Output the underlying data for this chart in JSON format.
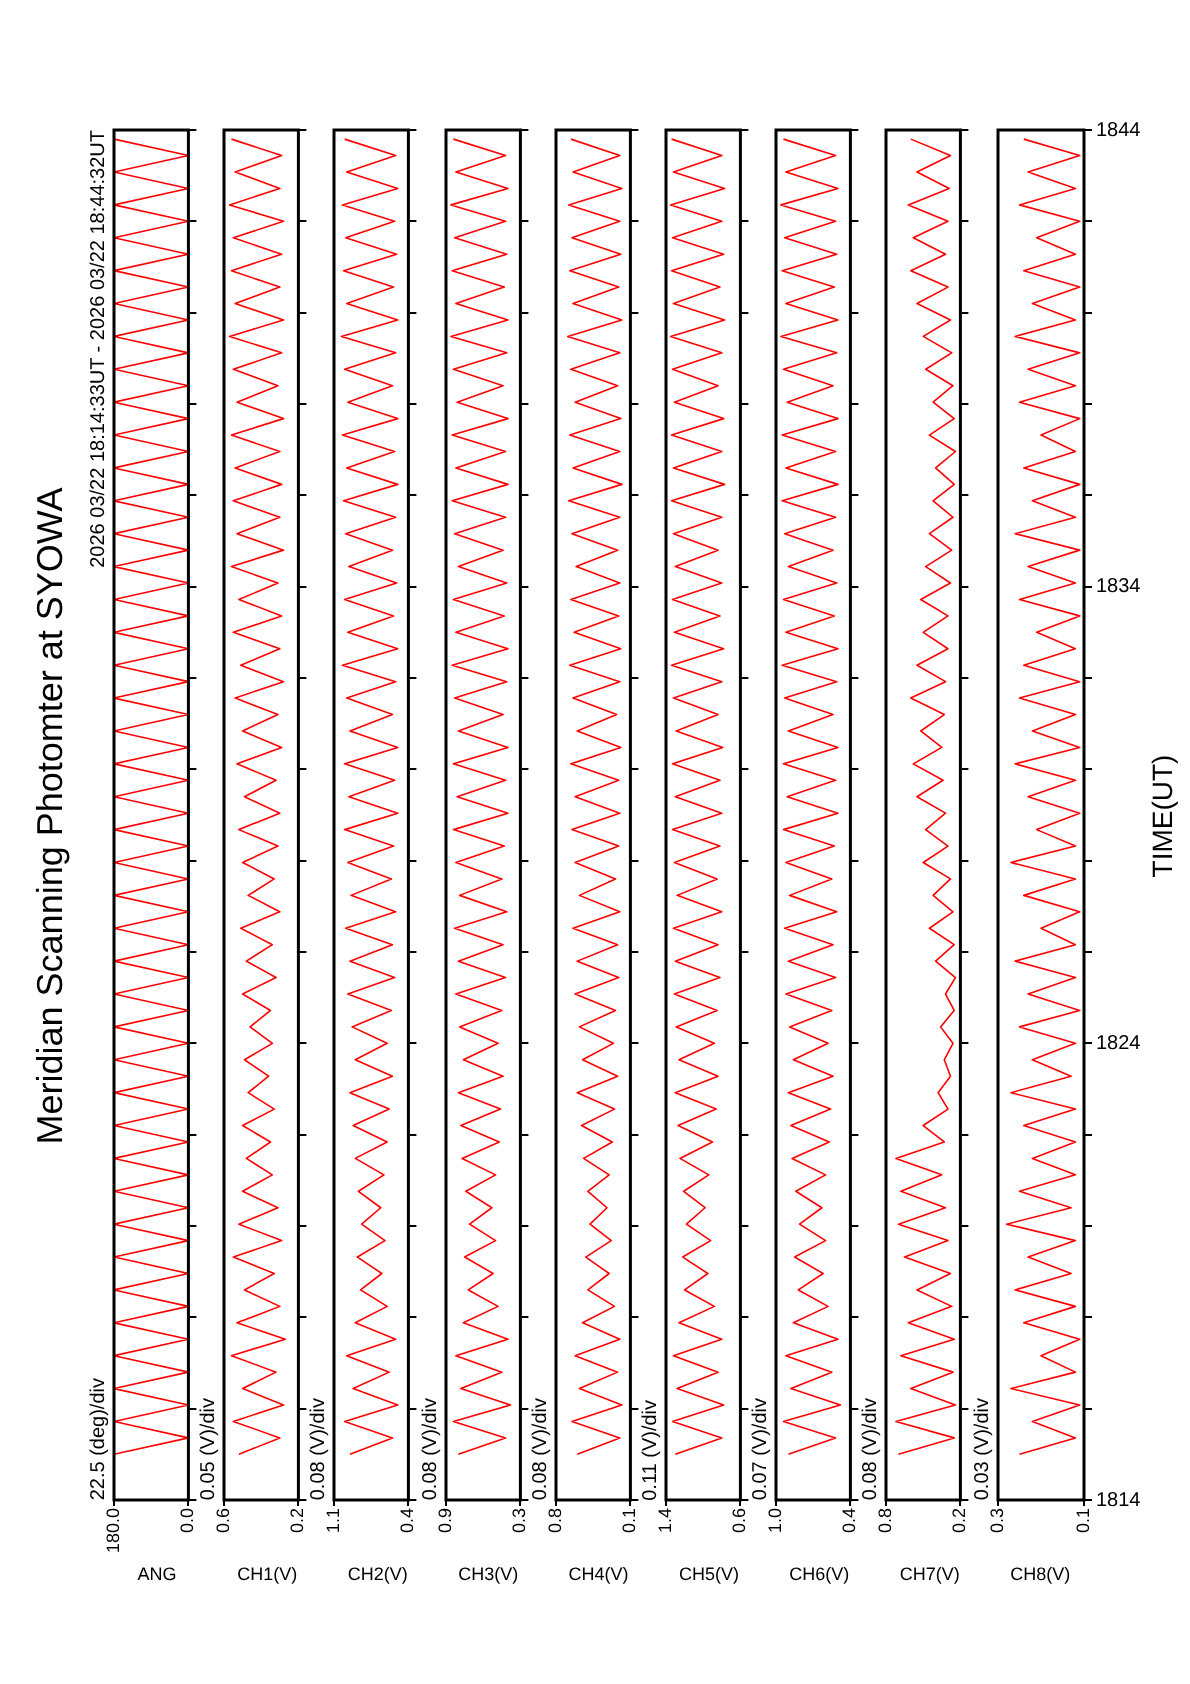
{
  "chart_data": [
    {
      "type": "line",
      "title": "Meridian Scanning Photomter at SYOWA",
      "subtitle": "2026 03/22 18:14:33UT - 2026 03/22 18:44:32UT",
      "xlabel": "ANG",
      "annotations": [
        "22.5 (deg)/div"
      ],
      "color": "#ff0000",
      "tick_labels": "x",
      "ylim": [
        1814,
        1844
      ],
      "yticks": [
        1814,
        {
          "value": 1816,
          "label": null
        },
        {
          "value": 1818,
          "label": null
        },
        {
          "value": 1820,
          "label": null
        },
        {
          "value": 1822,
          "label": null
        },
        1824,
        {
          "value": 1826,
          "label": null
        },
        {
          "value": 1828,
          "label": null
        },
        {
          "value": 1830,
          "label": null
        },
        {
          "value": 1832,
          "label": null
        },
        1834,
        {
          "value": 1836,
          "label": null
        },
        {
          "value": 1838,
          "label": null
        },
        {
          "value": 1840,
          "label": null
        },
        {
          "value": 1842,
          "label": null
        },
        1844
      ],
      "xlim": [
        180,
        0
      ],
      "xticks": [
        {
          "value": 180,
          "label": "180.0"
        },
        {
          "value": 0,
          "label": "0.0"
        }
      ],
      "values": [
        1815,
        1815.36,
        1815.72,
        1816.08,
        1816.44,
        1816.8,
        1817.16,
        1817.52,
        1817.88,
        1818.24,
        1818.6,
        1818.96,
        1819.32,
        1819.68,
        1820.04,
        1820.4,
        1820.76,
        1821.12,
        1821.48,
        1821.84,
        1822.2,
        1822.56,
        1822.92,
        1823.28,
        1823.64,
        1824,
        1824.36,
        1824.72,
        1825.08,
        1825.44,
        1825.8,
        1826.16,
        1826.52,
        1826.88,
        1827.24,
        1827.6,
        1827.96,
        1828.32,
        1828.68,
        1829.04,
        1829.4,
        1829.76,
        1830.12,
        1830.48,
        1830.84,
        1831.2,
        1831.56,
        1831.92,
        1832.28,
        1832.64,
        1833,
        1833.36,
        1833.72,
        1834.08,
        1834.44,
        1834.8,
        1835.16,
        1835.52,
        1835.88,
        1836.24,
        1836.6,
        1836.96,
        1837.32,
        1837.68,
        1838.04,
        1838.4,
        1838.76,
        1839.12,
        1839.48,
        1839.84,
        1840.2,
        1840.56,
        1840.92,
        1841.28,
        1841.64,
        1842,
        1842.36,
        1842.72,
        1843.08,
        1843.44,
        1843.8
      ],
      "x": [
        180,
        0,
        180,
        0,
        180,
        0,
        180,
        0,
        180,
        0,
        180,
        0,
        180,
        0,
        180,
        0,
        180,
        0,
        180,
        0,
        180,
        0,
        180,
        0,
        180,
        0,
        180,
        0,
        180,
        0,
        180,
        0,
        180,
        0,
        180,
        0,
        180,
        0,
        180,
        0,
        180,
        0,
        180,
        0,
        180,
        0,
        180,
        0,
        180,
        0,
        180,
        0,
        180,
        0,
        180,
        0,
        180,
        0,
        180,
        0,
        180,
        0,
        180,
        0,
        180,
        0,
        180,
        0,
        180,
        0,
        180,
        0,
        180,
        0,
        180,
        0,
        180,
        0,
        180,
        0,
        180
      ]
    },
    {
      "type": "line",
      "xlabel": "CH1(V)",
      "annotations": [
        "0.05 (V)/div"
      ],
      "color": "#ff0000",
      "tick_labels": "x",
      "ylim": [
        1814,
        1844
      ],
      "yticks": [
        1814,
        {
          "value": 1816,
          "label": null
        },
        {
          "value": 1818,
          "label": null
        },
        {
          "value": 1820,
          "label": null
        },
        {
          "value": 1822,
          "label": null
        },
        1824,
        {
          "value": 1826,
          "label": null
        },
        {
          "value": 1828,
          "label": null
        },
        {
          "value": 1830,
          "label": null
        },
        {
          "value": 1832,
          "label": null
        },
        1834,
        {
          "value": 1836,
          "label": null
        },
        {
          "value": 1838,
          "label": null
        },
        {
          "value": 1840,
          "label": null
        },
        {
          "value": 1842,
          "label": null
        },
        1844
      ],
      "xlim": [
        0.6,
        0.2
      ],
      "xticks": [
        0.6,
        0.2
      ],
      "values": [
        1815,
        1815.36,
        1815.72,
        1816.08,
        1816.44,
        1816.8,
        1817.16,
        1817.52,
        1817.88,
        1818.24,
        1818.6,
        1818.96,
        1819.32,
        1819.68,
        1820.04,
        1820.4,
        1820.76,
        1821.12,
        1821.48,
        1821.84,
        1822.2,
        1822.56,
        1822.92,
        1823.28,
        1823.64,
        1824,
        1824.36,
        1824.72,
        1825.08,
        1825.44,
        1825.8,
        1826.16,
        1826.52,
        1826.88,
        1827.24,
        1827.6,
        1827.96,
        1828.32,
        1828.68,
        1829.04,
        1829.4,
        1829.76,
        1830.12,
        1830.48,
        1830.84,
        1831.2,
        1831.56,
        1831.92,
        1832.28,
        1832.64,
        1833,
        1833.36,
        1833.72,
        1834.08,
        1834.44,
        1834.8,
        1835.16,
        1835.52,
        1835.88,
        1836.24,
        1836.6,
        1836.96,
        1837.32,
        1837.68,
        1838.04,
        1838.4,
        1838.76,
        1839.12,
        1839.48,
        1839.84,
        1840.2,
        1840.56,
        1840.92,
        1841.28,
        1841.64,
        1842,
        1842.36,
        1842.72,
        1843.08,
        1843.44,
        1843.8
      ],
      "x": [
        0.52,
        0.3,
        0.55,
        0.28,
        0.5,
        0.32,
        0.56,
        0.27,
        0.53,
        0.3,
        0.49,
        0.33,
        0.55,
        0.29,
        0.52,
        0.31,
        0.5,
        0.34,
        0.48,
        0.35,
        0.5,
        0.33,
        0.47,
        0.36,
        0.49,
        0.34,
        0.46,
        0.35,
        0.5,
        0.32,
        0.48,
        0.34,
        0.51,
        0.3,
        0.47,
        0.33,
        0.5,
        0.31,
        0.52,
        0.3,
        0.49,
        0.32,
        0.53,
        0.29,
        0.5,
        0.31,
        0.54,
        0.28,
        0.51,
        0.3,
        0.55,
        0.29,
        0.52,
        0.31,
        0.56,
        0.28,
        0.53,
        0.3,
        0.55,
        0.29,
        0.54,
        0.3,
        0.56,
        0.28,
        0.53,
        0.31,
        0.55,
        0.29,
        0.57,
        0.28,
        0.54,
        0.3,
        0.56,
        0.29,
        0.55,
        0.28,
        0.57,
        0.3,
        0.54,
        0.29,
        0.56
      ]
    },
    {
      "type": "line",
      "xlabel": "CH2(V)",
      "annotations": [
        "0.08 (V)/div"
      ],
      "color": "#ff0000",
      "tick_labels": "x",
      "ylim": [
        1814,
        1844
      ],
      "yticks": [
        1814,
        {
          "value": 1816,
          "label": null
        },
        {
          "value": 1818,
          "label": null
        },
        {
          "value": 1820,
          "label": null
        },
        {
          "value": 1822,
          "label": null
        },
        1824,
        {
          "value": 1826,
          "label": null
        },
        {
          "value": 1828,
          "label": null
        },
        {
          "value": 1830,
          "label": null
        },
        {
          "value": 1832,
          "label": null
        },
        1834,
        {
          "value": 1836,
          "label": null
        },
        {
          "value": 1838,
          "label": null
        },
        {
          "value": 1840,
          "label": null
        },
        {
          "value": 1842,
          "label": null
        },
        1844
      ],
      "xlim": [
        1.1,
        0.4
      ],
      "xticks": [
        1.1,
        0.4
      ],
      "values": [
        1815,
        1815.36,
        1815.72,
        1816.08,
        1816.44,
        1816.8,
        1817.16,
        1817.52,
        1817.88,
        1818.24,
        1818.6,
        1818.96,
        1819.32,
        1819.68,
        1820.04,
        1820.4,
        1820.76,
        1821.12,
        1821.48,
        1821.84,
        1822.2,
        1822.56,
        1822.92,
        1823.28,
        1823.64,
        1824,
        1824.36,
        1824.72,
        1825.08,
        1825.44,
        1825.8,
        1826.16,
        1826.52,
        1826.88,
        1827.24,
        1827.6,
        1827.96,
        1828.32,
        1828.68,
        1829.04,
        1829.4,
        1829.76,
        1830.12,
        1830.48,
        1830.84,
        1831.2,
        1831.56,
        1831.92,
        1832.28,
        1832.64,
        1833,
        1833.36,
        1833.72,
        1834.08,
        1834.44,
        1834.8,
        1835.16,
        1835.52,
        1835.88,
        1836.24,
        1836.6,
        1836.96,
        1837.32,
        1837.68,
        1838.04,
        1838.4,
        1838.76,
        1839.12,
        1839.48,
        1839.84,
        1840.2,
        1840.56,
        1840.92,
        1841.28,
        1841.64,
        1842,
        1842.36,
        1842.72,
        1843.08,
        1843.44,
        1843.8
      ],
      "x": [
        0.95,
        0.55,
        1.0,
        0.5,
        0.92,
        0.58,
        0.98,
        0.52,
        0.9,
        0.6,
        0.85,
        0.65,
        0.88,
        0.62,
        0.84,
        0.66,
        0.87,
        0.63,
        0.9,
        0.6,
        0.92,
        0.58,
        0.95,
        0.55,
        0.9,
        0.6,
        0.93,
        0.56,
        0.97,
        0.53,
        0.95,
        0.55,
        0.99,
        0.52,
        0.94,
        0.56,
        0.97,
        0.54,
        1.0,
        0.5,
        0.96,
        0.53,
        1.0,
        0.5,
        0.95,
        0.55,
        0.98,
        0.52,
        1.02,
        0.5,
        0.97,
        0.54,
        1.0,
        0.51,
        0.96,
        0.55,
        0.99,
        0.52,
        1.01,
        0.5,
        0.98,
        0.53,
        1.02,
        0.5,
        0.97,
        0.55,
        1.0,
        0.52,
        1.03,
        0.5,
        0.98,
        0.54,
        1.01,
        0.51,
        0.99,
        0.53,
        1.02,
        0.5,
        0.98,
        0.52,
        1.0
      ]
    },
    {
      "type": "line",
      "xlabel": "CH3(V)",
      "annotations": [
        "0.08 (V)/div"
      ],
      "color": "#ff0000",
      "tick_labels": "x",
      "ylim": [
        1814,
        1844
      ],
      "yticks": [
        1814,
        {
          "value": 1816,
          "label": null
        },
        {
          "value": 1818,
          "label": null
        },
        {
          "value": 1820,
          "label": null
        },
        {
          "value": 1822,
          "label": null
        },
        1824,
        {
          "value": 1826,
          "label": null
        },
        {
          "value": 1828,
          "label": null
        },
        {
          "value": 1830,
          "label": null
        },
        {
          "value": 1832,
          "label": null
        },
        1834,
        {
          "value": 1836,
          "label": null
        },
        {
          "value": 1838,
          "label": null
        },
        {
          "value": 1840,
          "label": null
        },
        {
          "value": 1842,
          "label": null
        },
        1844
      ],
      "xlim": [
        0.9,
        0.3
      ],
      "xticks": [
        0.9,
        0.3
      ],
      "values": [
        1815,
        1815.36,
        1815.72,
        1816.08,
        1816.44,
        1816.8,
        1817.16,
        1817.52,
        1817.88,
        1818.24,
        1818.6,
        1818.96,
        1819.32,
        1819.68,
        1820.04,
        1820.4,
        1820.76,
        1821.12,
        1821.48,
        1821.84,
        1822.2,
        1822.56,
        1822.92,
        1823.28,
        1823.64,
        1824,
        1824.36,
        1824.72,
        1825.08,
        1825.44,
        1825.8,
        1826.16,
        1826.52,
        1826.88,
        1827.24,
        1827.6,
        1827.96,
        1828.32,
        1828.68,
        1829.04,
        1829.4,
        1829.76,
        1830.12,
        1830.48,
        1830.84,
        1831.2,
        1831.56,
        1831.92,
        1832.28,
        1832.64,
        1833,
        1833.36,
        1833.72,
        1834.08,
        1834.44,
        1834.8,
        1835.16,
        1835.52,
        1835.88,
        1836.24,
        1836.6,
        1836.96,
        1837.32,
        1837.68,
        1838.04,
        1838.4,
        1838.76,
        1839.12,
        1839.48,
        1839.84,
        1840.2,
        1840.56,
        1840.92,
        1841.28,
        1841.64,
        1842,
        1842.36,
        1842.72,
        1843.08,
        1843.44,
        1843.8
      ],
      "x": [
        0.8,
        0.42,
        0.84,
        0.38,
        0.78,
        0.45,
        0.82,
        0.4,
        0.76,
        0.48,
        0.72,
        0.52,
        0.75,
        0.5,
        0.71,
        0.53,
        0.74,
        0.5,
        0.77,
        0.47,
        0.78,
        0.46,
        0.8,
        0.44,
        0.76,
        0.48,
        0.79,
        0.45,
        0.82,
        0.42,
        0.8,
        0.44,
        0.83,
        0.41,
        0.79,
        0.45,
        0.82,
        0.43,
        0.84,
        0.4,
        0.81,
        0.42,
        0.84,
        0.4,
        0.8,
        0.44,
        0.83,
        0.41,
        0.85,
        0.4,
        0.82,
        0.43,
        0.84,
        0.41,
        0.8,
        0.44,
        0.83,
        0.42,
        0.85,
        0.4,
        0.82,
        0.42,
        0.85,
        0.4,
        0.81,
        0.44,
        0.84,
        0.41,
        0.86,
        0.4,
        0.82,
        0.43,
        0.85,
        0.41,
        0.83,
        0.42,
        0.86,
        0.4,
        0.82,
        0.42,
        0.84
      ]
    },
    {
      "type": "line",
      "xlabel": "CH4(V)",
      "annotations": [
        "0.08 (V)/div"
      ],
      "color": "#ff0000",
      "tick_labels": "x",
      "ylim": [
        1814,
        1844
      ],
      "yticks": [
        1814,
        {
          "value": 1816,
          "label": null
        },
        {
          "value": 1818,
          "label": null
        },
        {
          "value": 1820,
          "label": null
        },
        {
          "value": 1822,
          "label": null
        },
        1824,
        {
          "value": 1826,
          "label": null
        },
        {
          "value": 1828,
          "label": null
        },
        {
          "value": 1830,
          "label": null
        },
        {
          "value": 1832,
          "label": null
        },
        1834,
        {
          "value": 1836,
          "label": null
        },
        {
          "value": 1838,
          "label": null
        },
        {
          "value": 1840,
          "label": null
        },
        {
          "value": 1842,
          "label": null
        },
        1844
      ],
      "xlim": [
        0.8,
        0.1
      ],
      "xticks": [
        0.8,
        0.1
      ],
      "values": [
        1815,
        1815.36,
        1815.72,
        1816.08,
        1816.44,
        1816.8,
        1817.16,
        1817.52,
        1817.88,
        1818.24,
        1818.6,
        1818.96,
        1819.32,
        1819.68,
        1820.04,
        1820.4,
        1820.76,
        1821.12,
        1821.48,
        1821.84,
        1822.2,
        1822.56,
        1822.92,
        1823.28,
        1823.64,
        1824,
        1824.36,
        1824.72,
        1825.08,
        1825.44,
        1825.8,
        1826.16,
        1826.52,
        1826.88,
        1827.24,
        1827.6,
        1827.96,
        1828.32,
        1828.68,
        1829.04,
        1829.4,
        1829.76,
        1830.12,
        1830.48,
        1830.84,
        1831.2,
        1831.56,
        1831.92,
        1832.28,
        1832.64,
        1833,
        1833.36,
        1833.72,
        1834.08,
        1834.44,
        1834.8,
        1835.16,
        1835.52,
        1835.88,
        1836.24,
        1836.6,
        1836.96,
        1837.32,
        1837.68,
        1838.04,
        1838.4,
        1838.76,
        1839.12,
        1839.48,
        1839.84,
        1840.2,
        1840.56,
        1840.92,
        1841.28,
        1841.64,
        1842,
        1842.36,
        1842.72,
        1843.08,
        1843.44,
        1843.8
      ],
      "x": [
        0.6,
        0.2,
        0.65,
        0.18,
        0.58,
        0.22,
        0.62,
        0.2,
        0.55,
        0.25,
        0.5,
        0.3,
        0.52,
        0.28,
        0.48,
        0.32,
        0.5,
        0.3,
        0.54,
        0.27,
        0.56,
        0.25,
        0.6,
        0.22,
        0.55,
        0.26,
        0.58,
        0.24,
        0.62,
        0.21,
        0.6,
        0.22,
        0.64,
        0.2,
        0.58,
        0.24,
        0.62,
        0.21,
        0.65,
        0.2,
        0.62,
        0.21,
        0.66,
        0.19,
        0.6,
        0.23,
        0.64,
        0.2,
        0.67,
        0.19,
        0.63,
        0.21,
        0.66,
        0.2,
        0.61,
        0.22,
        0.65,
        0.2,
        0.68,
        0.18,
        0.64,
        0.2,
        0.67,
        0.19,
        0.62,
        0.22,
        0.66,
        0.2,
        0.69,
        0.18,
        0.64,
        0.21,
        0.67,
        0.19,
        0.65,
        0.2,
        0.68,
        0.18,
        0.64,
        0.2,
        0.66
      ]
    },
    {
      "type": "line",
      "xlabel": "CH5(V)",
      "annotations": [
        "0.11 (V)/div"
      ],
      "color": "#ff0000",
      "tick_labels": "x",
      "ylim": [
        1814,
        1844
      ],
      "yticks": [
        1814,
        {
          "value": 1816,
          "label": null
        },
        {
          "value": 1818,
          "label": null
        },
        {
          "value": 1820,
          "label": null
        },
        {
          "value": 1822,
          "label": null
        },
        1824,
        {
          "value": 1826,
          "label": null
        },
        {
          "value": 1828,
          "label": null
        },
        {
          "value": 1830,
          "label": null
        },
        {
          "value": 1832,
          "label": null
        },
        1834,
        {
          "value": 1836,
          "label": null
        },
        {
          "value": 1838,
          "label": null
        },
        {
          "value": 1840,
          "label": null
        },
        {
          "value": 1842,
          "label": null
        },
        1844
      ],
      "xlim": [
        1.4,
        0.6
      ],
      "xticks": [
        1.4,
        0.6
      ],
      "values": [
        1815,
        1815.36,
        1815.72,
        1816.08,
        1816.44,
        1816.8,
        1817.16,
        1817.52,
        1817.88,
        1818.24,
        1818.6,
        1818.96,
        1819.32,
        1819.68,
        1820.04,
        1820.4,
        1820.76,
        1821.12,
        1821.48,
        1821.84,
        1822.2,
        1822.56,
        1822.92,
        1823.28,
        1823.64,
        1824,
        1824.36,
        1824.72,
        1825.08,
        1825.44,
        1825.8,
        1826.16,
        1826.52,
        1826.88,
        1827.24,
        1827.6,
        1827.96,
        1828.32,
        1828.68,
        1829.04,
        1829.4,
        1829.76,
        1830.12,
        1830.48,
        1830.84,
        1831.2,
        1831.56,
        1831.92,
        1832.28,
        1832.64,
        1833,
        1833.36,
        1833.72,
        1834.08,
        1834.44,
        1834.8,
        1835.16,
        1835.52,
        1835.88,
        1836.24,
        1836.6,
        1836.96,
        1837.32,
        1837.68,
        1838.04,
        1838.4,
        1838.76,
        1839.12,
        1839.48,
        1839.84,
        1840.2,
        1840.56,
        1840.92,
        1841.28,
        1841.64,
        1842,
        1842.36,
        1842.72,
        1843.08,
        1843.44,
        1843.8
      ],
      "x": [
        1.3,
        0.8,
        1.33,
        0.78,
        1.28,
        0.84,
        1.32,
        0.8,
        1.26,
        0.88,
        1.2,
        0.95,
        1.22,
        0.92,
        1.18,
        0.98,
        1.21,
        0.94,
        1.25,
        0.9,
        1.27,
        0.86,
        1.3,
        0.84,
        1.26,
        0.88,
        1.29,
        0.85,
        1.31,
        0.82,
        1.3,
        0.84,
        1.32,
        0.8,
        1.28,
        0.85,
        1.31,
        0.82,
        1.33,
        0.8,
        1.3,
        0.82,
        1.33,
        0.79,
        1.29,
        0.84,
        1.32,
        0.8,
        1.34,
        0.78,
        1.31,
        0.82,
        1.33,
        0.8,
        1.3,
        0.84,
        1.32,
        0.8,
        1.34,
        0.77,
        1.32,
        0.8,
        1.34,
        0.78,
        1.31,
        0.84,
        1.33,
        0.8,
        1.35,
        0.77,
        1.32,
        0.82,
        1.34,
        0.78,
        1.33,
        0.8,
        1.35,
        0.77,
        1.32,
        0.8,
        1.34
      ]
    },
    {
      "type": "line",
      "xlabel": "CH6(V)",
      "annotations": [
        "0.07 (V)/div"
      ],
      "color": "#ff0000",
      "tick_labels": "x",
      "ylim": [
        1814,
        1844
      ],
      "yticks": [
        1814,
        {
          "value": 1816,
          "label": null
        },
        {
          "value": 1818,
          "label": null
        },
        {
          "value": 1820,
          "label": null
        },
        {
          "value": 1822,
          "label": null
        },
        1824,
        {
          "value": 1826,
          "label": null
        },
        {
          "value": 1828,
          "label": null
        },
        {
          "value": 1830,
          "label": null
        },
        {
          "value": 1832,
          "label": null
        },
        1834,
        {
          "value": 1836,
          "label": null
        },
        {
          "value": 1838,
          "label": null
        },
        {
          "value": 1840,
          "label": null
        },
        {
          "value": 1842,
          "label": null
        },
        1844
      ],
      "xlim": [
        1.0,
        0.4
      ],
      "xticks": [
        {
          "value": 1.0,
          "label": "1.0"
        },
        0.4
      ],
      "values": [
        1815,
        1815.36,
        1815.72,
        1816.08,
        1816.44,
        1816.8,
        1817.16,
        1817.52,
        1817.88,
        1818.24,
        1818.6,
        1818.96,
        1819.32,
        1819.68,
        1820.04,
        1820.4,
        1820.76,
        1821.12,
        1821.48,
        1821.84,
        1822.2,
        1822.56,
        1822.92,
        1823.28,
        1823.64,
        1824,
        1824.36,
        1824.72,
        1825.08,
        1825.44,
        1825.8,
        1826.16,
        1826.52,
        1826.88,
        1827.24,
        1827.6,
        1827.96,
        1828.32,
        1828.68,
        1829.04,
        1829.4,
        1829.76,
        1830.12,
        1830.48,
        1830.84,
        1831.2,
        1831.56,
        1831.92,
        1832.28,
        1832.64,
        1833,
        1833.36,
        1833.72,
        1834.08,
        1834.44,
        1834.8,
        1835.16,
        1835.52,
        1835.88,
        1836.24,
        1836.6,
        1836.96,
        1837.32,
        1837.68,
        1838.04,
        1838.4,
        1838.76,
        1839.12,
        1839.48,
        1839.84,
        1840.2,
        1840.56,
        1840.92,
        1841.28,
        1841.64,
        1842,
        1842.36,
        1842.72,
        1843.08,
        1843.44,
        1843.8
      ],
      "x": [
        0.9,
        0.52,
        0.94,
        0.48,
        0.88,
        0.55,
        0.92,
        0.5,
        0.86,
        0.58,
        0.82,
        0.62,
        0.85,
        0.6,
        0.81,
        0.63,
        0.84,
        0.6,
        0.87,
        0.57,
        0.88,
        0.56,
        0.9,
        0.54,
        0.86,
        0.58,
        0.89,
        0.55,
        0.92,
        0.52,
        0.9,
        0.54,
        0.93,
        0.51,
        0.89,
        0.55,
        0.92,
        0.53,
        0.94,
        0.5,
        0.91,
        0.52,
        0.94,
        0.5,
        0.9,
        0.54,
        0.93,
        0.51,
        0.95,
        0.5,
        0.92,
        0.53,
        0.94,
        0.51,
        0.9,
        0.54,
        0.93,
        0.52,
        0.95,
        0.5,
        0.92,
        0.52,
        0.95,
        0.5,
        0.91,
        0.54,
        0.94,
        0.51,
        0.96,
        0.5,
        0.92,
        0.53,
        0.95,
        0.51,
        0.93,
        0.52,
        0.96,
        0.5,
        0.92,
        0.52,
        0.94
      ]
    },
    {
      "type": "line",
      "xlabel": "CH7(V)",
      "annotations": [
        "0.08 (V)/div"
      ],
      "color": "#ff0000",
      "tick_labels": "x",
      "ylim": [
        1814,
        1844
      ],
      "yticks": [
        1814,
        {
          "value": 1816,
          "label": null
        },
        {
          "value": 1818,
          "label": null
        },
        {
          "value": 1820,
          "label": null
        },
        {
          "value": 1822,
          "label": null
        },
        1824,
        {
          "value": 1826,
          "label": null
        },
        {
          "value": 1828,
          "label": null
        },
        {
          "value": 1830,
          "label": null
        },
        {
          "value": 1832,
          "label": null
        },
        1834,
        {
          "value": 1836,
          "label": null
        },
        {
          "value": 1838,
          "label": null
        },
        {
          "value": 1840,
          "label": null
        },
        {
          "value": 1842,
          "label": null
        },
        1844
      ],
      "xlim": [
        0.8,
        0.2
      ],
      "xticks": [
        0.8,
        0.2
      ],
      "values": [
        1815,
        1815.36,
        1815.72,
        1816.08,
        1816.44,
        1816.8,
        1817.16,
        1817.52,
        1817.88,
        1818.24,
        1818.6,
        1818.96,
        1819.32,
        1819.68,
        1820.04,
        1820.4,
        1820.76,
        1821.12,
        1821.48,
        1821.84,
        1822.2,
        1822.56,
        1822.92,
        1823.28,
        1823.64,
        1824,
        1824.36,
        1824.72,
        1825.08,
        1825.44,
        1825.8,
        1826.16,
        1826.52,
        1826.88,
        1827.24,
        1827.6,
        1827.96,
        1828.32,
        1828.68,
        1829.04,
        1829.4,
        1829.76,
        1830.12,
        1830.48,
        1830.84,
        1831.2,
        1831.56,
        1831.92,
        1832.28,
        1832.64,
        1833,
        1833.36,
        1833.72,
        1834.08,
        1834.44,
        1834.8,
        1835.16,
        1835.52,
        1835.88,
        1836.24,
        1836.6,
        1836.96,
        1837.32,
        1837.68,
        1838.04,
        1838.4,
        1838.76,
        1839.12,
        1839.48,
        1839.84,
        1840.2,
        1840.56,
        1840.92,
        1841.28,
        1841.64,
        1842,
        1842.36,
        1842.72,
        1843.08,
        1843.44,
        1843.8
      ],
      "x": [
        0.7,
        0.25,
        0.72,
        0.24,
        0.6,
        0.26,
        0.68,
        0.25,
        0.62,
        0.27,
        0.55,
        0.28,
        0.65,
        0.3,
        0.7,
        0.32,
        0.68,
        0.35,
        0.72,
        0.33,
        0.5,
        0.3,
        0.38,
        0.28,
        0.33,
        0.26,
        0.36,
        0.25,
        0.32,
        0.24,
        0.4,
        0.25,
        0.45,
        0.26,
        0.42,
        0.28,
        0.5,
        0.3,
        0.48,
        0.32,
        0.55,
        0.34,
        0.58,
        0.35,
        0.52,
        0.33,
        0.6,
        0.32,
        0.55,
        0.3,
        0.5,
        0.3,
        0.52,
        0.28,
        0.48,
        0.27,
        0.45,
        0.26,
        0.42,
        0.25,
        0.4,
        0.24,
        0.45,
        0.25,
        0.42,
        0.26,
        0.48,
        0.27,
        0.5,
        0.28,
        0.55,
        0.3,
        0.6,
        0.32,
        0.58,
        0.3,
        0.62,
        0.29,
        0.55,
        0.28,
        0.6
      ]
    },
    {
      "type": "line",
      "xlabel": "CH8(V)",
      "ylabel": "TIME(UT)",
      "annotations": [
        "0.03 (V)/div"
      ],
      "color": "#ff0000",
      "ylim": [
        1814,
        1844
      ],
      "yticks": [
        1814,
        {
          "value": 1816,
          "label": null
        },
        {
          "value": 1818,
          "label": null
        },
        {
          "value": 1820,
          "label": null
        },
        {
          "value": 1822,
          "label": null
        },
        1824,
        {
          "value": 1826,
          "label": null
        },
        {
          "value": 1828,
          "label": null
        },
        {
          "value": 1830,
          "label": null
        },
        {
          "value": 1832,
          "label": null
        },
        1834,
        {
          "value": 1836,
          "label": null
        },
        {
          "value": 1838,
          "label": null
        },
        {
          "value": 1840,
          "label": null
        },
        {
          "value": 1842,
          "label": null
        },
        1844
      ],
      "xlim": [
        0.3,
        0.1
      ],
      "xticks": [
        0.3,
        0.1
      ],
      "values": [
        1815,
        1815.36,
        1815.72,
        1816.08,
        1816.44,
        1816.8,
        1817.16,
        1817.52,
        1817.88,
        1818.24,
        1818.6,
        1818.96,
        1819.32,
        1819.68,
        1820.04,
        1820.4,
        1820.76,
        1821.12,
        1821.48,
        1821.84,
        1822.2,
        1822.56,
        1822.92,
        1823.28,
        1823.64,
        1824,
        1824.36,
        1824.72,
        1825.08,
        1825.44,
        1825.8,
        1826.16,
        1826.52,
        1826.88,
        1827.24,
        1827.6,
        1827.96,
        1828.32,
        1828.68,
        1829.04,
        1829.4,
        1829.76,
        1830.12,
        1830.48,
        1830.84,
        1831.2,
        1831.56,
        1831.92,
        1832.28,
        1832.64,
        1833,
        1833.36,
        1833.72,
        1834.08,
        1834.44,
        1834.8,
        1835.16,
        1835.52,
        1835.88,
        1836.24,
        1836.6,
        1836.96,
        1837.32,
        1837.68,
        1838.04,
        1838.4,
        1838.76,
        1839.12,
        1839.48,
        1839.84,
        1840.2,
        1840.56,
        1840.92,
        1841.28,
        1841.64,
        1842,
        1842.36,
        1842.72,
        1843.08,
        1843.44,
        1843.8
      ],
      "x": [
        0.25,
        0.12,
        0.22,
        0.11,
        0.27,
        0.12,
        0.2,
        0.11,
        0.24,
        0.12,
        0.26,
        0.13,
        0.23,
        0.12,
        0.28,
        0.13,
        0.25,
        0.12,
        0.22,
        0.12,
        0.24,
        0.12,
        0.27,
        0.13,
        0.22,
        0.12,
        0.25,
        0.11,
        0.23,
        0.12,
        0.26,
        0.12,
        0.2,
        0.11,
        0.24,
        0.12,
        0.27,
        0.12,
        0.21,
        0.11,
        0.23,
        0.12,
        0.26,
        0.11,
        0.22,
        0.12,
        0.25,
        0.11,
        0.24,
        0.12,
        0.21,
        0.11,
        0.25,
        0.12,
        0.23,
        0.11,
        0.26,
        0.12,
        0.22,
        0.11,
        0.24,
        0.12,
        0.2,
        0.11,
        0.25,
        0.12,
        0.23,
        0.11,
        0.26,
        0.12,
        0.22,
        0.11,
        0.24,
        0.12,
        0.21,
        0.11,
        0.25,
        0.12,
        0.23,
        0.11,
        0.24
      ]
    }
  ]
}
